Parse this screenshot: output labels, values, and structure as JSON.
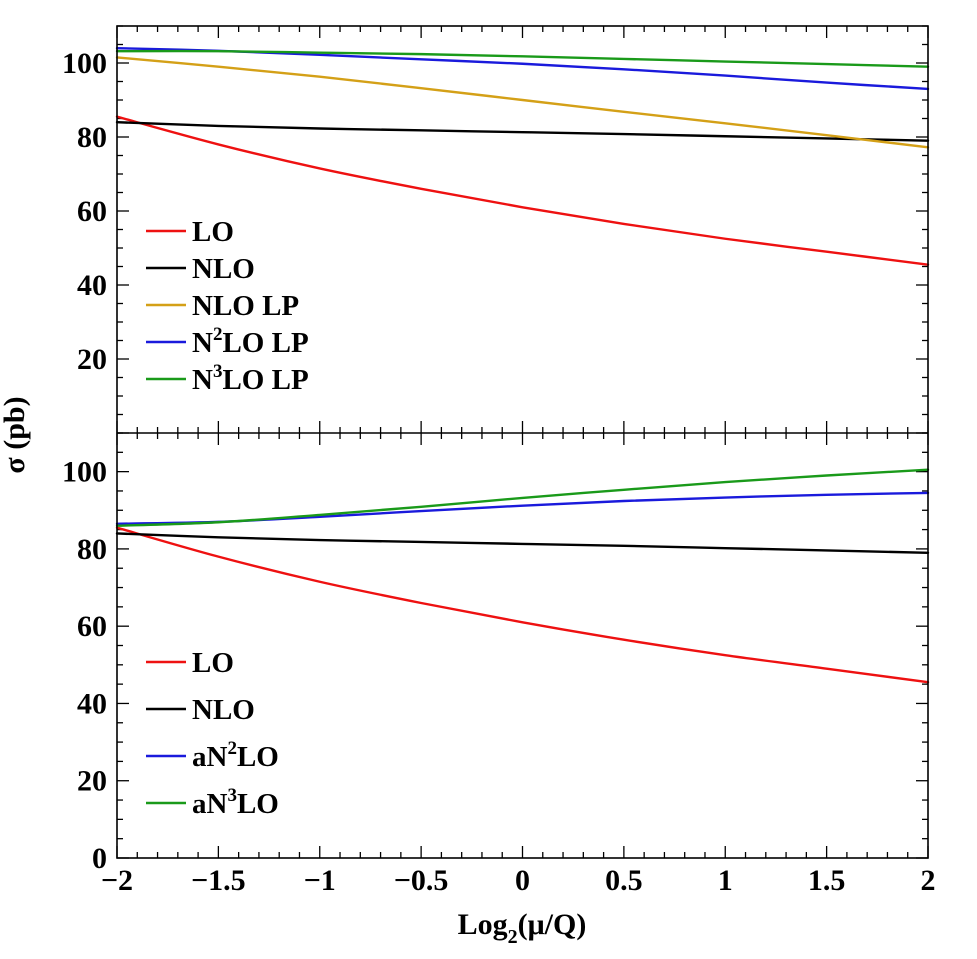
{
  "chart_data": [
    {
      "type": "line",
      "panel": "top",
      "x": [
        -2,
        -1.5,
        -1,
        -0.5,
        0,
        0.5,
        1,
        1.5,
        2
      ],
      "xlim": [
        -2,
        2
      ],
      "ylim": [
        0,
        110
      ],
      "yticks": [
        "20",
        "40",
        "60",
        "80",
        "100"
      ],
      "legend_position": "left",
      "series": [
        {
          "name": "LO",
          "legend_main": "LO",
          "legend_sup": "",
          "legend_rest": "",
          "color": "#ee1111",
          "values": [
            85.5,
            78.0,
            71.5,
            66.0,
            61.0,
            56.5,
            52.5,
            49.0,
            45.5
          ]
        },
        {
          "name": "NLO",
          "legend_main": "NLO",
          "legend_sup": "",
          "legend_rest": "",
          "color": "#000000",
          "values": [
            84.0,
            83.0,
            82.3,
            81.8,
            81.3,
            80.8,
            80.2,
            79.6,
            79.0
          ]
        },
        {
          "name": "NLO LP",
          "legend_main": "NLO LP",
          "legend_sup": "",
          "legend_rest": "",
          "color": "#d4a017",
          "values": [
            101.5,
            99.0,
            96.3,
            93.2,
            90.0,
            86.8,
            83.7,
            80.5,
            77.2
          ]
        },
        {
          "name": "N2LO LP",
          "legend_main": "N",
          "legend_sup": "2",
          "legend_rest": "LO LP",
          "color": "#1a1adc",
          "values": [
            104.0,
            103.3,
            102.2,
            101.0,
            99.8,
            98.3,
            96.6,
            94.7,
            93.0
          ]
        },
        {
          "name": "N3LO LP",
          "legend_main": "N",
          "legend_sup": "3",
          "legend_rest": "LO LP",
          "color": "#1a9a1a",
          "values": [
            103.2,
            103.2,
            102.8,
            102.4,
            101.8,
            101.1,
            100.4,
            99.7,
            99.0
          ]
        }
      ]
    },
    {
      "type": "line",
      "panel": "bottom",
      "x": [
        -2,
        -1.5,
        -1,
        -0.5,
        0,
        0.5,
        1,
        1.5,
        2
      ],
      "xlim": [
        -2,
        2
      ],
      "ylim": [
        0,
        110
      ],
      "yticks": [
        "0",
        "20",
        "40",
        "60",
        "80",
        "100"
      ],
      "xticks": [
        "−2",
        "−1.5",
        "−1",
        "−0.5",
        "0",
        "0.5",
        "1",
        "1.5",
        "2"
      ],
      "legend_position": "left",
      "series": [
        {
          "name": "LO",
          "legend_main": "LO",
          "legend_sup": "",
          "legend_rest": "",
          "color": "#ee1111",
          "values": [
            85.5,
            78.0,
            71.5,
            66.0,
            61.0,
            56.5,
            52.5,
            49.0,
            45.5
          ]
        },
        {
          "name": "NLO",
          "legend_main": "NLO",
          "legend_sup": "",
          "legend_rest": "",
          "color": "#000000",
          "values": [
            84.0,
            83.0,
            82.3,
            81.8,
            81.3,
            80.8,
            80.2,
            79.6,
            79.0
          ]
        },
        {
          "name": "aN2LO",
          "legend_main": "aN",
          "legend_sup": "2",
          "legend_rest": "LO",
          "color": "#1a1adc",
          "values": [
            86.5,
            87.0,
            88.3,
            89.8,
            91.2,
            92.4,
            93.3,
            94.0,
            94.5
          ]
        },
        {
          "name": "aN3LO",
          "legend_main": "aN",
          "legend_sup": "3",
          "legend_rest": "LO",
          "color": "#1a9a1a",
          "values": [
            86.0,
            86.9,
            88.8,
            90.9,
            93.2,
            95.3,
            97.3,
            99.0,
            100.5
          ]
        }
      ]
    }
  ],
  "axes": {
    "ylabel": "σ (pb)",
    "xlabel_main": "Log",
    "xlabel_sub": "2",
    "xlabel_rest": "(μ/Q)"
  }
}
